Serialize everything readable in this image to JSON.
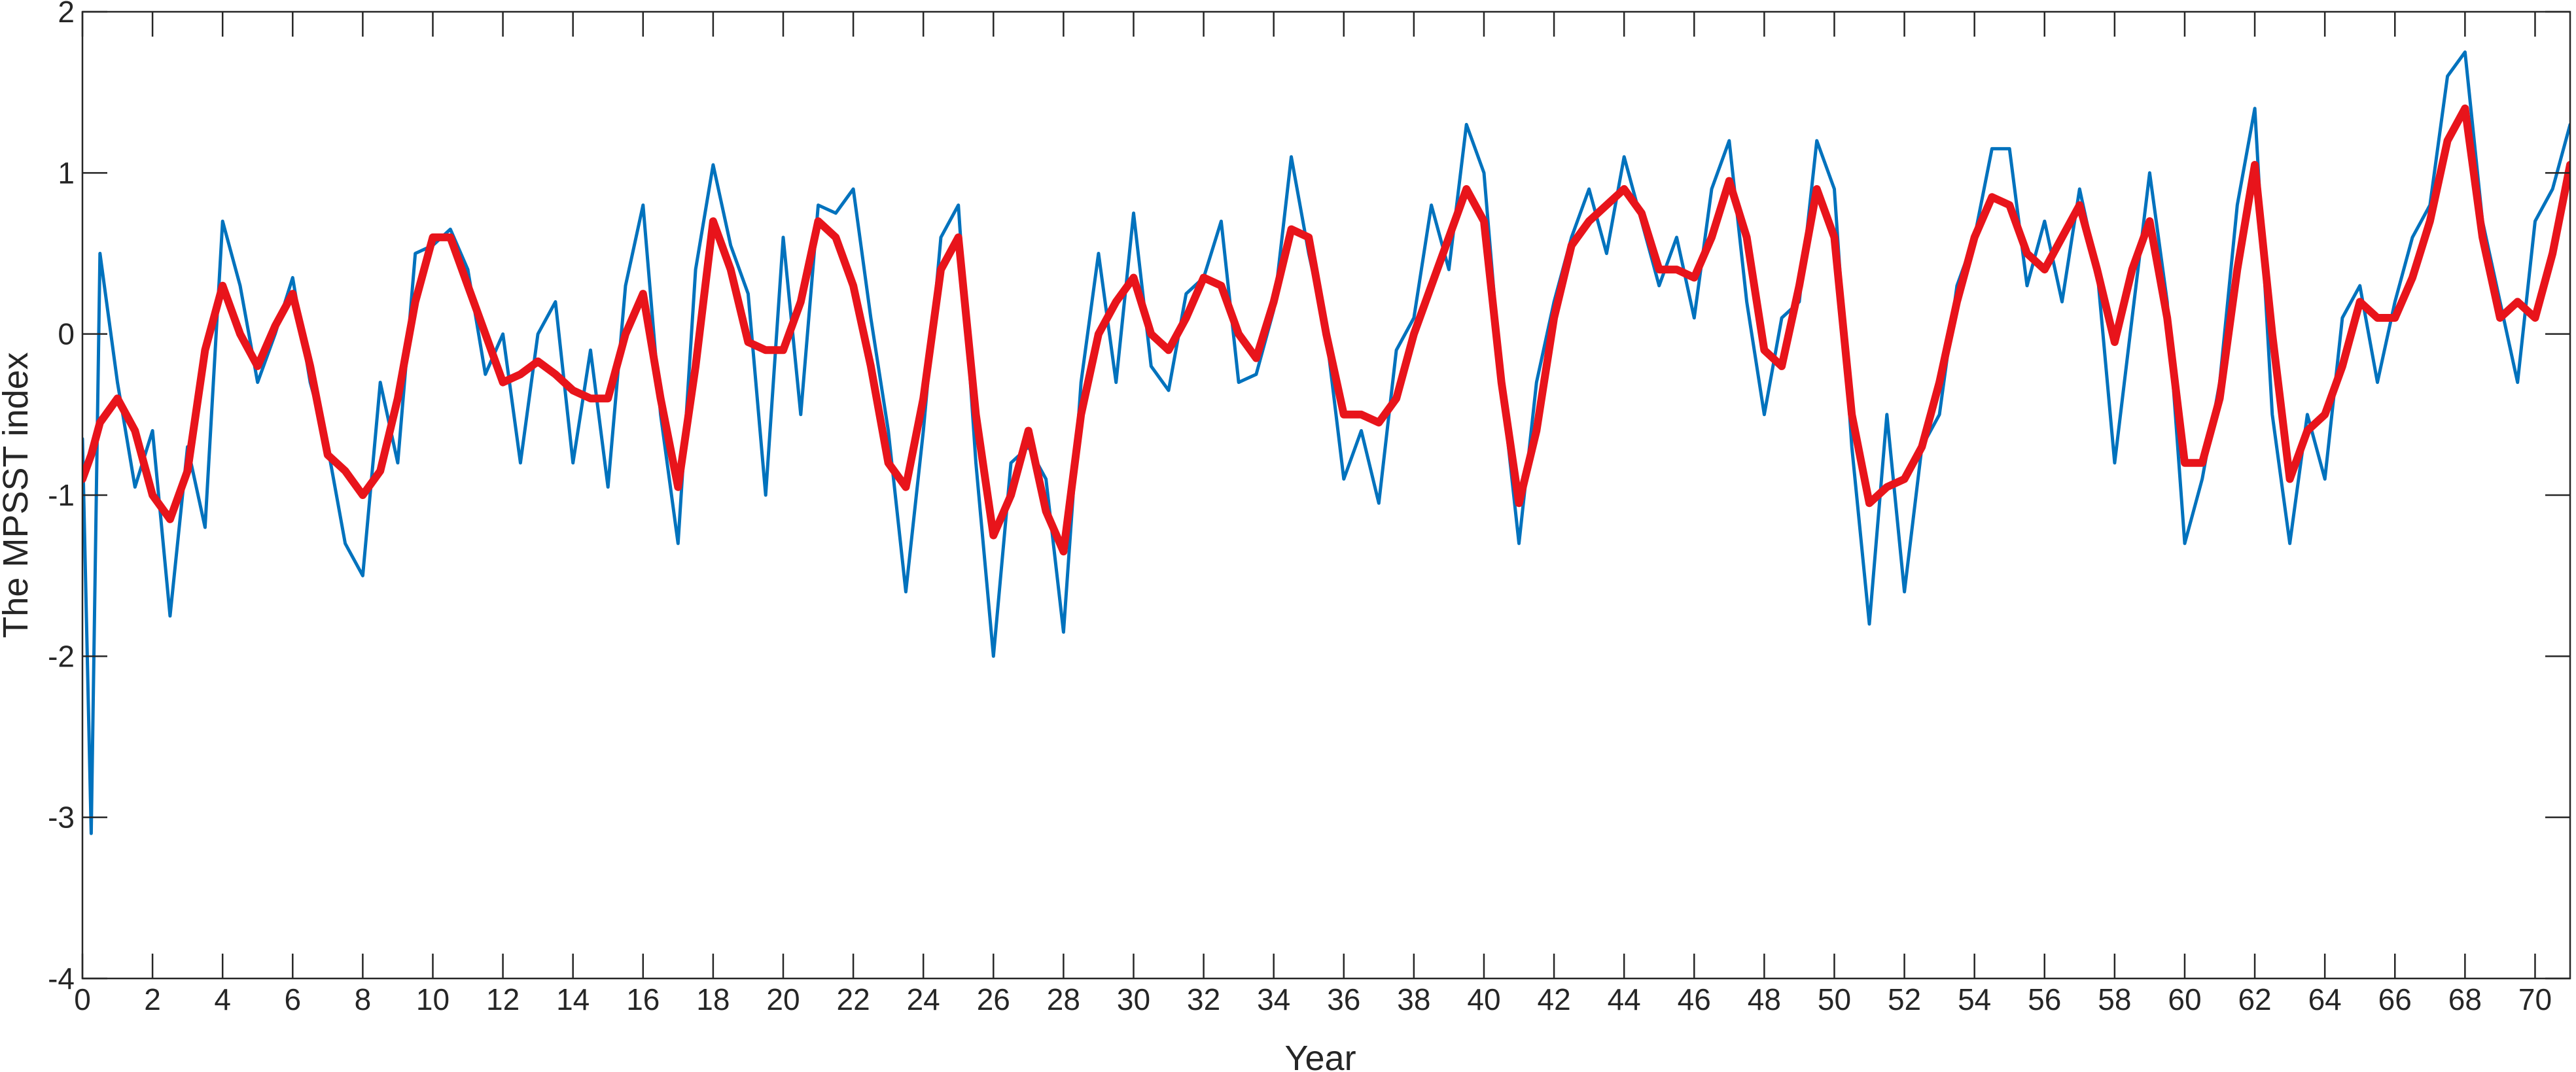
{
  "chart_data": {
    "type": "line",
    "xlabel": "Year",
    "ylabel": "The MPSST index",
    "x": [
      0,
      0.25,
      0.5,
      1,
      1.5,
      2,
      2.5,
      3,
      3.5,
      4,
      4.5,
      5,
      5.5,
      6,
      6.5,
      7,
      7.5,
      8,
      8.5,
      9,
      9.5,
      10,
      10.5,
      11,
      11.5,
      12,
      12.5,
      13,
      13.5,
      14,
      14.5,
      15,
      15.5,
      16,
      16.5,
      17,
      17.5,
      18,
      18.5,
      19,
      19.5,
      20,
      20.5,
      21,
      21.5,
      22,
      22.5,
      23,
      23.5,
      24,
      24.5,
      25,
      25.5,
      26,
      26.5,
      27,
      27.5,
      28,
      28.5,
      29,
      29.5,
      30,
      30.5,
      31,
      31.5,
      32,
      32.5,
      33,
      33.5,
      34,
      34.5,
      35,
      35.5,
      36,
      36.5,
      37,
      37.5,
      38,
      38.5,
      39,
      39.5,
      40,
      40.5,
      41,
      41.5,
      42,
      42.5,
      43,
      43.5,
      44,
      44.5,
      45,
      45.5,
      46,
      46.5,
      47,
      47.5,
      48,
      48.5,
      49,
      49.5,
      50,
      50.5,
      51,
      51.5,
      52,
      52.5,
      53,
      53.5,
      54,
      54.5,
      55,
      55.5,
      56,
      56.5,
      57,
      57.5,
      58,
      58.5,
      59,
      59.5,
      60,
      60.5,
      61,
      61.5,
      62,
      62.5,
      63,
      63.5,
      64,
      64.5,
      65,
      65.5,
      66,
      66.5,
      67,
      67.5,
      68,
      68.5,
      69,
      69.5,
      70,
      70.5,
      71
    ],
    "series": [
      {
        "color": "#0072bd",
        "width": 5,
        "values": [
          -0.65,
          -3.1,
          0.5,
          -0.3,
          -0.95,
          -0.6,
          -1.75,
          -0.7,
          -1.2,
          0.7,
          0.3,
          -0.3,
          0.0,
          0.35,
          -0.3,
          -0.7,
          -1.3,
          -1.5,
          -0.3,
          -0.8,
          0.5,
          0.55,
          0.65,
          0.4,
          -0.25,
          0.0,
          -0.8,
          0.0,
          0.2,
          -0.8,
          -0.1,
          -0.95,
          0.3,
          0.8,
          -0.5,
          -1.3,
          0.4,
          1.05,
          0.55,
          0.25,
          -1.0,
          0.6,
          -0.5,
          0.8,
          0.75,
          0.9,
          0.1,
          -0.6,
          -1.6,
          -0.6,
          0.6,
          0.8,
          -0.8,
          -2.0,
          -0.8,
          -0.7,
          -0.9,
          -1.85,
          -0.3,
          0.5,
          -0.3,
          0.75,
          -0.2,
          -0.35,
          0.25,
          0.35,
          0.7,
          -0.3,
          -0.25,
          0.15,
          1.1,
          0.5,
          0.0,
          -0.9,
          -0.6,
          -1.05,
          -0.1,
          0.1,
          0.8,
          0.4,
          1.3,
          1.0,
          -0.3,
          -1.3,
          -0.3,
          0.2,
          0.6,
          0.9,
          0.5,
          1.1,
          0.7,
          0.3,
          0.6,
          0.1,
          0.9,
          1.2,
          0.2,
          -0.5,
          0.1,
          0.2,
          1.2,
          0.9,
          -0.7,
          -1.8,
          -0.5,
          -1.6,
          -0.7,
          -0.5,
          0.3,
          0.6,
          1.15,
          1.15,
          0.3,
          0.7,
          0.2,
          0.9,
          0.4,
          -0.8,
          0.1,
          1.0,
          0.2,
          -1.3,
          -0.9,
          -0.3,
          0.8,
          1.4,
          -0.5,
          -1.3,
          -0.5,
          -0.9,
          0.1,
          0.3,
          -0.3,
          0.2,
          0.6,
          0.8,
          1.6,
          1.75,
          0.7,
          0.2,
          -0.3,
          0.7,
          0.9,
          1.3
        ]
      },
      {
        "color": "#e8141b",
        "width": 12,
        "values": [
          -0.9,
          -0.75,
          -0.55,
          -0.4,
          -0.6,
          -1.0,
          -1.15,
          -0.85,
          -0.1,
          0.3,
          0.0,
          -0.2,
          0.05,
          0.25,
          -0.2,
          -0.75,
          -0.85,
          -1.0,
          -0.85,
          -0.4,
          0.2,
          0.6,
          0.6,
          0.3,
          0.0,
          -0.3,
          -0.25,
          -0.17,
          -0.25,
          -0.35,
          -0.4,
          -0.4,
          0.0,
          0.25,
          -0.4,
          -0.95,
          -0.2,
          0.7,
          0.4,
          -0.05,
          -0.1,
          -0.1,
          0.2,
          0.7,
          0.6,
          0.3,
          -0.2,
          -0.8,
          -0.95,
          -0.4,
          0.4,
          0.6,
          -0.5,
          -1.25,
          -1.0,
          -0.6,
          -1.1,
          -1.35,
          -0.5,
          0.0,
          0.2,
          0.35,
          0.0,
          -0.1,
          0.1,
          0.35,
          0.3,
          0.0,
          -0.15,
          0.2,
          0.65,
          0.6,
          0.0,
          -0.5,
          -0.5,
          -0.55,
          -0.4,
          0.0,
          0.3,
          0.6,
          0.9,
          0.7,
          -0.3,
          -1.05,
          -0.6,
          0.1,
          0.55,
          0.7,
          0.8,
          0.9,
          0.75,
          0.4,
          0.4,
          0.35,
          0.6,
          0.95,
          0.6,
          -0.1,
          -0.2,
          0.3,
          0.9,
          0.6,
          -0.5,
          -1.05,
          -0.95,
          -0.9,
          -0.7,
          -0.3,
          0.2,
          0.6,
          0.85,
          0.8,
          0.5,
          0.4,
          0.6,
          0.8,
          0.4,
          -0.05,
          0.4,
          0.7,
          0.1,
          -0.8,
          -0.8,
          -0.4,
          0.4,
          1.05,
          0.0,
          -0.9,
          -0.6,
          -0.5,
          -0.2,
          0.2,
          0.1,
          0.1,
          0.35,
          0.7,
          1.2,
          1.4,
          0.6,
          0.1,
          0.2,
          0.1,
          0.5,
          1.05
        ]
      }
    ],
    "xlim": [
      0,
      71
    ],
    "ylim": [
      -4,
      2
    ],
    "xticks": [
      0,
      2,
      4,
      6,
      8,
      10,
      12,
      14,
      16,
      18,
      20,
      22,
      24,
      26,
      28,
      30,
      32,
      34,
      36,
      38,
      40,
      42,
      44,
      46,
      48,
      50,
      52,
      54,
      56,
      58,
      60,
      62,
      64,
      66,
      68,
      70
    ],
    "yticks": [
      -4,
      -3,
      -2,
      -1,
      0,
      1,
      2
    ],
    "grid": false
  }
}
